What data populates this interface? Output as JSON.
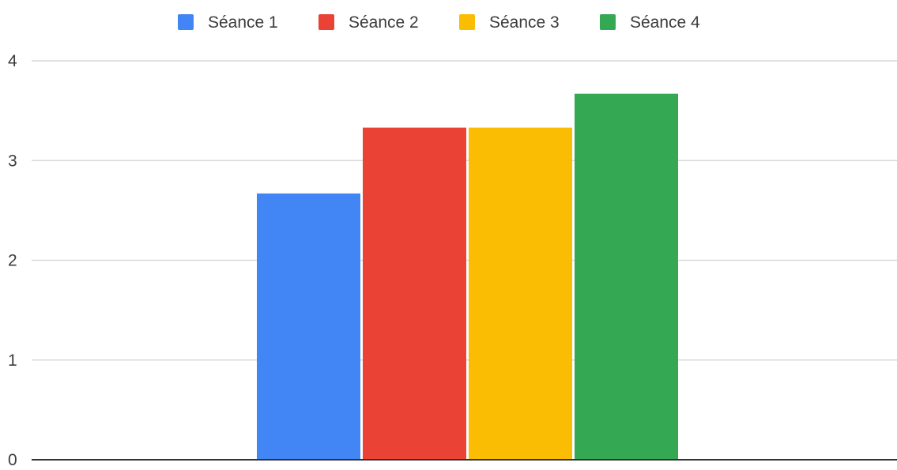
{
  "chart_data": {
    "type": "bar",
    "categories": [
      ""
    ],
    "series": [
      {
        "name": "Séance 1",
        "color": "#4285f4",
        "values": [
          2.67
        ]
      },
      {
        "name": "Séance 2",
        "color": "#ea4335",
        "values": [
          3.33
        ]
      },
      {
        "name": "Séance 3",
        "color": "#fbbc04",
        "values": [
          3.33
        ]
      },
      {
        "name": "Séance 4",
        "color": "#34a853",
        "values": [
          3.67
        ]
      }
    ],
    "title": "",
    "xlabel": "",
    "ylabel": "",
    "ylim": [
      0,
      4
    ],
    "yticks": [
      "0",
      "1",
      "2",
      "3",
      "4"
    ],
    "grid": true,
    "legend_position": "top-center"
  }
}
